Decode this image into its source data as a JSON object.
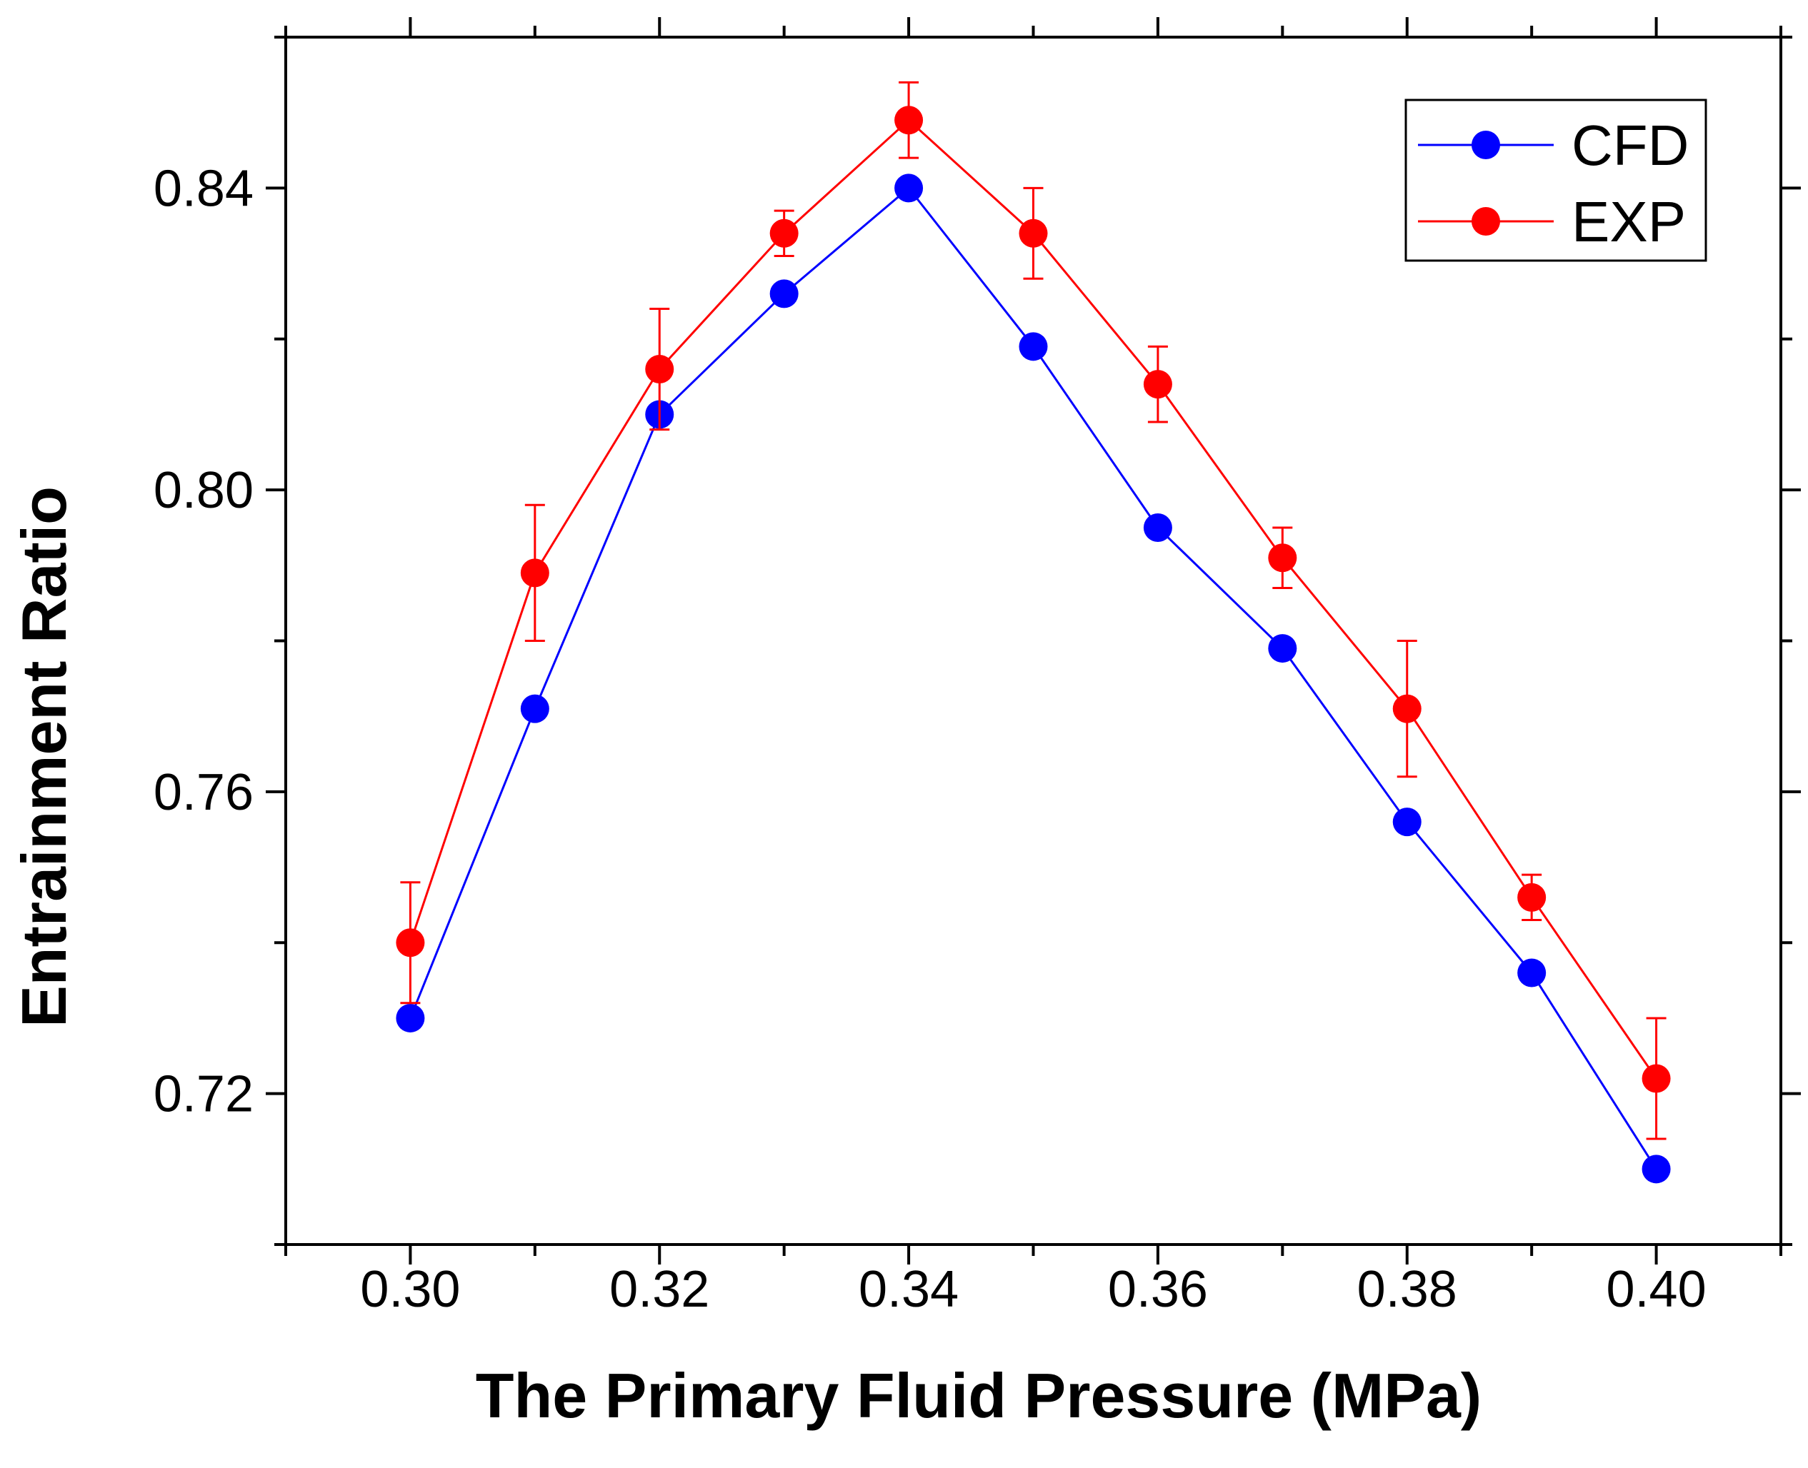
{
  "chart_data": {
    "type": "line",
    "xlabel": "The Primary Fluid Pressure (MPa)",
    "ylabel": "Entrainment Ratio",
    "xlim": [
      0.29,
      0.41
    ],
    "ylim": [
      0.7,
      0.86
    ],
    "x_ticks": [
      "0.30",
      "0.32",
      "0.34",
      "0.36",
      "0.38",
      "0.40"
    ],
    "y_ticks": [
      "0.72",
      "0.76",
      "0.80",
      "0.84"
    ],
    "x": [
      0.3,
      0.31,
      0.32,
      0.33,
      0.34,
      0.35,
      0.36,
      0.37,
      0.38,
      0.39,
      0.4
    ],
    "grid": false,
    "legend_position": "top-right",
    "series": [
      {
        "name": "CFD",
        "color": "#0000ff",
        "values": [
          0.73,
          0.771,
          0.81,
          0.826,
          0.84,
          0.819,
          0.795,
          0.779,
          0.756,
          0.736,
          0.71
        ]
      },
      {
        "name": "EXP",
        "color": "#ff0000",
        "values": [
          0.74,
          0.789,
          0.816,
          0.834,
          0.849,
          0.834,
          0.814,
          0.791,
          0.771,
          0.746,
          0.722
        ],
        "error": [
          0.008,
          0.009,
          0.008,
          0.003,
          0.005,
          0.006,
          0.005,
          0.004,
          0.009,
          0.003,
          0.008
        ]
      }
    ]
  }
}
